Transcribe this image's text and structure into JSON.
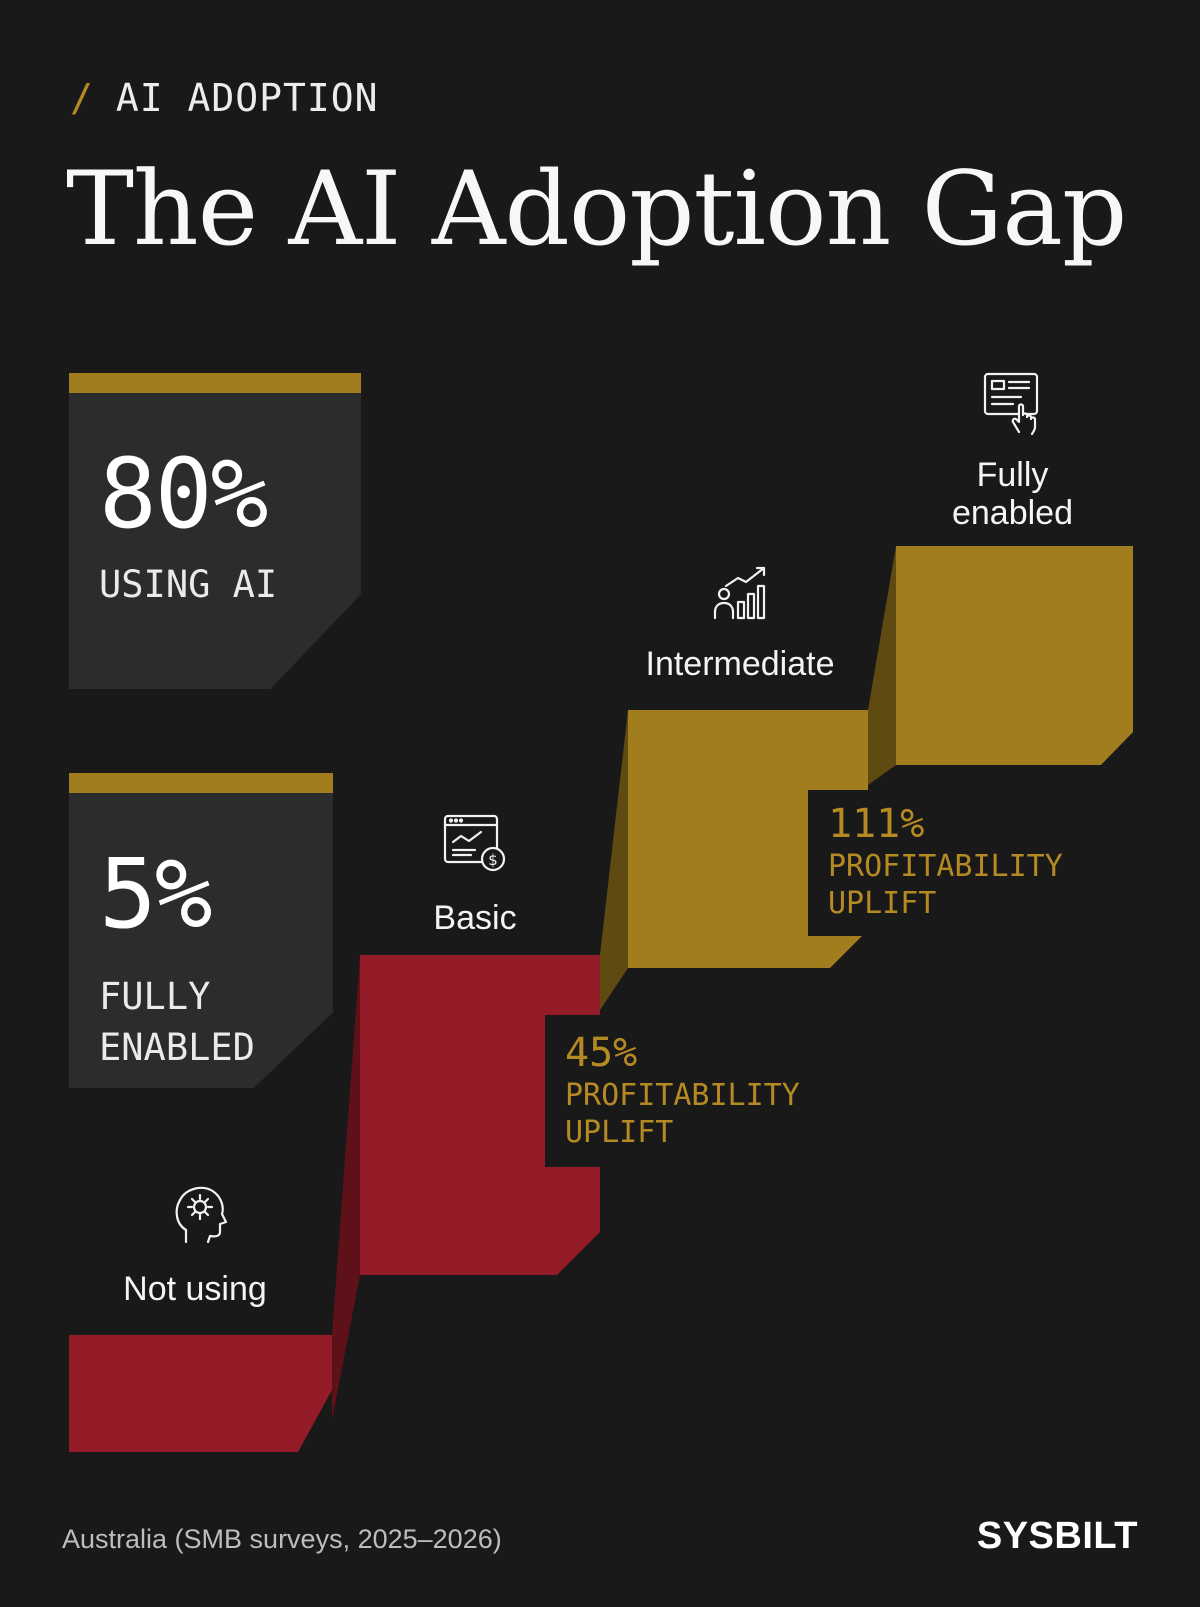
{
  "header": {
    "eyebrow_slash": "/",
    "eyebrow": "AI ADOPTION",
    "title": "The AI Adoption Gap"
  },
  "stats": [
    {
      "value": "80%",
      "label": "USING AI"
    },
    {
      "value": "5%",
      "label": "FULLY\nENABLED"
    }
  ],
  "stages": [
    {
      "label": "Not using",
      "icon": "head-gear-icon"
    },
    {
      "label": "Basic",
      "icon": "browser-money-icon"
    },
    {
      "label": "Intermediate",
      "icon": "person-growth-chart-icon"
    },
    {
      "label": "Fully\nenabled",
      "icon": "document-click-icon"
    }
  ],
  "callouts": [
    {
      "value": "45%",
      "label": "PROFITABILITY\nUPLIFT"
    },
    {
      "value": "111%",
      "label": "PROFITABILITY\nUPLIFT"
    }
  ],
  "footer": {
    "note": "Australia (SMB surveys, 2025–2026)",
    "brand": "SYSBILT"
  },
  "colors": {
    "background": "#191919",
    "card": "#2b2c2d",
    "gold": "#a17d1e",
    "gold_text": "#b58a23",
    "red": "#941b28"
  }
}
